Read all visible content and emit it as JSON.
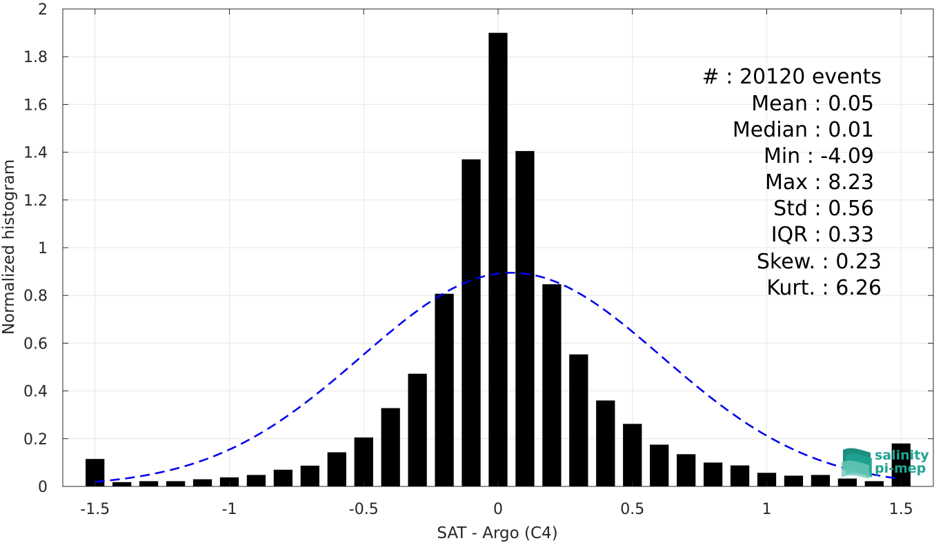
{
  "chart_data": {
    "type": "bar",
    "xlabel": "SAT - Argo (C4)",
    "ylabel": "Normalized histogram",
    "xlim": [
      -1.62,
      1.62
    ],
    "ylim": [
      0,
      2
    ],
    "grid": true,
    "x_ticks": [
      -1.5,
      -1,
      -0.5,
      0,
      0.5,
      1,
      1.5
    ],
    "x_tick_labels": [
      "-1.5",
      "-1",
      "-0.5",
      "0",
      "0.5",
      "1",
      "1.5"
    ],
    "y_ticks": [
      0,
      0.2,
      0.4,
      0.6,
      0.8,
      1,
      1.2,
      1.4,
      1.6,
      1.8,
      2
    ],
    "y_tick_labels": [
      "0",
      "0.2",
      "0.4",
      "0.6",
      "0.8",
      "1",
      "1.2",
      "1.4",
      "1.6",
      "1.8",
      "2"
    ],
    "bar_width": 0.07,
    "bins": [
      -1.5,
      -1.4,
      -1.3,
      -1.2,
      -1.1,
      -1.0,
      -0.9,
      -0.8,
      -0.7,
      -0.6,
      -0.5,
      -0.4,
      -0.3,
      -0.2,
      -0.1,
      0.0,
      0.1,
      0.2,
      0.3,
      0.4,
      0.5,
      0.6,
      0.7,
      0.8,
      0.9,
      1.0,
      1.1,
      1.2,
      1.3,
      1.4,
      1.5
    ],
    "values": [
      0.115,
      0.018,
      0.022,
      0.022,
      0.03,
      0.038,
      0.048,
      0.07,
      0.087,
      0.143,
      0.205,
      0.328,
      0.472,
      0.807,
      1.37,
      1.9,
      1.405,
      0.847,
      0.553,
      0.36,
      0.262,
      0.175,
      0.135,
      0.1,
      0.088,
      0.057,
      0.045,
      0.048,
      0.033,
      0.022,
      0.18
    ],
    "bar_color": "#000000",
    "fit_curve": {
      "type": "normal",
      "mean": 0.05,
      "std": 0.56,
      "peak": 0.895,
      "color": "#0000ee",
      "style": "dashed"
    },
    "stats": [
      {
        "label": "#  : 20120 events"
      },
      {
        "label": "Mean : 0.05"
      },
      {
        "label": "Median : 0.01"
      },
      {
        "label": "Min : -4.09"
      },
      {
        "label": "Max : 8.23"
      },
      {
        "label": "Std : 0.56"
      },
      {
        "label": "IQR : 0.33"
      },
      {
        "label": "Skew. : 0.23"
      },
      {
        "label": "Kurt. : 6.26"
      }
    ]
  },
  "logo": {
    "line1": "salinity",
    "line2": "pi-mep",
    "color": "#1fa392"
  }
}
